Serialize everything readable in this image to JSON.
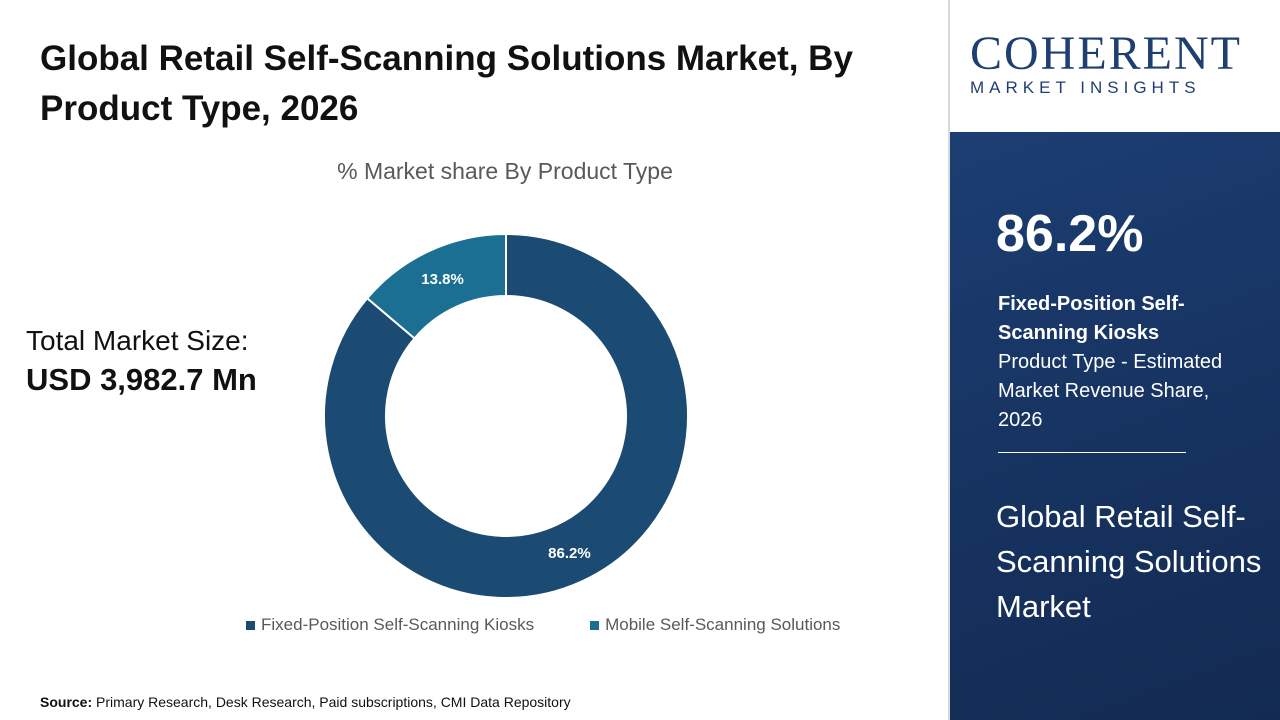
{
  "title": "Global Retail Self-Scanning Solutions Market, By Product Type, 2026",
  "market_size": {
    "label": "Total Market Size:",
    "value": "USD 3,982.7 Mn"
  },
  "source": {
    "label": "Source:",
    "text": "Primary Research, Desk Research, Paid subscriptions, CMI Data Repository"
  },
  "brand": {
    "name": "COHERENT",
    "tagline": "MARKET INSIGHTS",
    "color": "#1f3f73"
  },
  "side_panel": {
    "kpi_value": "86.2%",
    "kpi_segment": "Fixed-Position Self-Scanning Kiosks",
    "kpi_caption": "Product Type - Estimated Market Revenue Share, 2026",
    "market_name": "Global Retail Self-Scanning Solutions Market"
  },
  "chart_data": {
    "type": "pie",
    "variant": "donut",
    "title": "% Market share By Product Type",
    "legend_position": "bottom",
    "series": [
      {
        "name": "Fixed-Position Self-Scanning Kiosks",
        "value": 86.2,
        "label": "86.2%",
        "color": "#1b4a73"
      },
      {
        "name": "Mobile Self-Scanning Solutions",
        "value": 13.8,
        "label": "13.8%",
        "color": "#1a6f93"
      }
    ]
  }
}
